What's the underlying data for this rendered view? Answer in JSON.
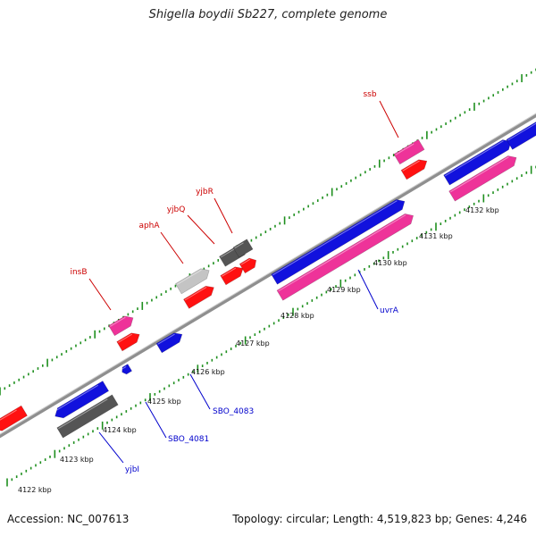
{
  "title": "Shigella boydii Sb227, complete genome",
  "footer": {
    "accession": "Accession: NC_007613",
    "summary": "Topology: circular; Length: 4,519,823 bp; Genes: 4,246"
  },
  "colors": {
    "backbone": "#8f8f8f",
    "tick": "#1e8f1e",
    "label_top": "#cc0000",
    "label_bottom": "#0000cc",
    "magenta": "#ee3399",
    "red": "#ff1111",
    "blue": "#1111dd",
    "gray": "#555555",
    "lightgray": "#c4c4c4"
  },
  "kbp_labels": [
    "4122 kbp",
    "4123 kbp",
    "4124 kbp",
    "4125 kbp",
    "4126 kbp",
    "4127 kbp",
    "4128 kbp",
    "4129 kbp",
    "4130 kbp",
    "4131 kbp",
    "4132 kbp"
  ],
  "gene_labels_top": [
    "insB",
    "aphA",
    "yjbQ",
    "yjbR",
    "ssb"
  ],
  "gene_labels_bottom": [
    "yjbI",
    "SBO_4081",
    "SBO_4083",
    "uvrA"
  ]
}
